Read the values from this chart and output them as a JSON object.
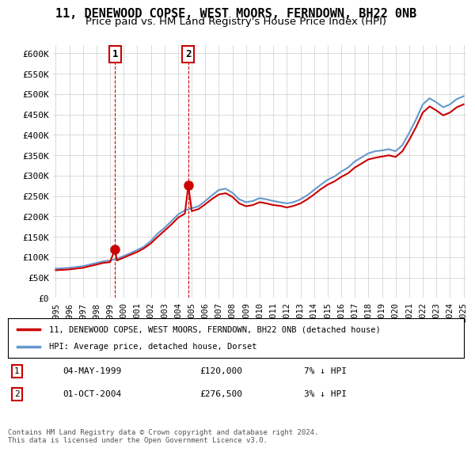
{
  "title": "11, DENEWOOD COPSE, WEST MOORS, FERNDOWN, BH22 0NB",
  "subtitle": "Price paid vs. HM Land Registry's House Price Index (HPI)",
  "legend_line1": "11, DENEWOOD COPSE, WEST MOORS, FERNDOWN, BH22 0NB (detached house)",
  "legend_line2": "HPI: Average price, detached house, Dorset",
  "footer": "Contains HM Land Registry data © Crown copyright and database right 2024.\nThis data is licensed under the Open Government Licence v3.0.",
  "annotation1_label": "1",
  "annotation1_date": "04-MAY-1999",
  "annotation1_price": "£120,000",
  "annotation1_hpi": "7% ↓ HPI",
  "annotation2_label": "2",
  "annotation2_date": "01-OCT-2004",
  "annotation2_price": "£276,500",
  "annotation2_hpi": "3% ↓ HPI",
  "sale1_x": 1999.35,
  "sale1_y": 120000,
  "sale2_x": 2004.75,
  "sale2_y": 276500,
  "hpi_x": [
    1995,
    1995.5,
    1996,
    1996.5,
    1997,
    1997.5,
    1998,
    1998.5,
    1999,
    1999.5,
    2000,
    2000.5,
    2001,
    2001.5,
    2002,
    2002.5,
    2003,
    2003.5,
    2004,
    2004.5,
    2005,
    2005.5,
    2006,
    2006.5,
    2007,
    2007.5,
    2008,
    2008.5,
    2009,
    2009.5,
    2010,
    2010.5,
    2011,
    2011.5,
    2012,
    2012.5,
    2013,
    2013.5,
    2014,
    2014.5,
    2015,
    2015.5,
    2016,
    2016.5,
    2017,
    2017.5,
    2018,
    2018.5,
    2019,
    2019.5,
    2020,
    2020.5,
    2021,
    2021.5,
    2022,
    2022.5,
    2023,
    2023.5,
    2024,
    2024.5,
    2025
  ],
  "hpi_y": [
    72000,
    73000,
    74000,
    76000,
    78000,
    82000,
    86000,
    90000,
    92000,
    96000,
    103000,
    110000,
    118000,
    126000,
    140000,
    158000,
    172000,
    188000,
    205000,
    215000,
    220000,
    225000,
    238000,
    252000,
    265000,
    268000,
    258000,
    242000,
    235000,
    238000,
    245000,
    242000,
    238000,
    235000,
    232000,
    235000,
    242000,
    252000,
    265000,
    278000,
    290000,
    298000,
    310000,
    320000,
    335000,
    345000,
    355000,
    360000,
    362000,
    365000,
    360000,
    375000,
    405000,
    438000,
    475000,
    490000,
    480000,
    468000,
    475000,
    488000,
    495000
  ],
  "price_x": [
    1995,
    1995.5,
    1996,
    1996.5,
    1997,
    1997.5,
    1998,
    1998.5,
    1999,
    1999.35,
    1999.5,
    2000,
    2000.5,
    2001,
    2001.5,
    2002,
    2002.5,
    2003,
    2003.5,
    2004,
    2004.5,
    2004.75,
    2005,
    2005.5,
    2006,
    2006.5,
    2007,
    2007.5,
    2008,
    2008.5,
    2009,
    2009.5,
    2010,
    2010.5,
    2011,
    2011.5,
    2012,
    2012.5,
    2013,
    2013.5,
    2014,
    2014.5,
    2015,
    2015.5,
    2016,
    2016.5,
    2017,
    2017.5,
    2018,
    2018.5,
    2019,
    2019.5,
    2020,
    2020.5,
    2021,
    2021.5,
    2022,
    2022.5,
    2023,
    2023.5,
    2024,
    2024.5,
    2025
  ],
  "price_y": [
    68000,
    69000,
    70000,
    72000,
    74000,
    78000,
    82000,
    86000,
    88000,
    120000,
    92000,
    99000,
    106000,
    113000,
    122000,
    134000,
    150000,
    165000,
    180000,
    197000,
    207000,
    276500,
    213000,
    218000,
    230000,
    243000,
    254000,
    257000,
    248000,
    232000,
    225000,
    228000,
    235000,
    232000,
    228000,
    226000,
    222000,
    226000,
    232000,
    242000,
    254000,
    267000,
    278000,
    286000,
    297000,
    306000,
    320000,
    330000,
    340000,
    344000,
    347000,
    350000,
    346000,
    360000,
    388000,
    419000,
    455000,
    470000,
    460000,
    448000,
    455000,
    468000,
    475000
  ],
  "ylim": [
    0,
    620000
  ],
  "yticks": [
    0,
    50000,
    100000,
    150000,
    200000,
    250000,
    300000,
    350000,
    400000,
    450000,
    500000,
    550000,
    600000
  ],
  "xlim": [
    1994.8,
    2025.2
  ],
  "xticks": [
    1995,
    1996,
    1997,
    1998,
    1999,
    2000,
    2001,
    2002,
    2003,
    2004,
    2005,
    2006,
    2007,
    2008,
    2009,
    2010,
    2011,
    2012,
    2013,
    2014,
    2015,
    2016,
    2017,
    2018,
    2019,
    2020,
    2021,
    2022,
    2023,
    2024,
    2025
  ],
  "hpi_color": "#6699cc",
  "price_color": "#cc0000",
  "sale_marker_color": "#cc0000",
  "annotation_box_color": "#cc0000",
  "bg_color": "#ffffff",
  "plot_bg_color": "#ffffff",
  "grid_color": "#cccccc",
  "title_fontsize": 11,
  "subtitle_fontsize": 9.5
}
